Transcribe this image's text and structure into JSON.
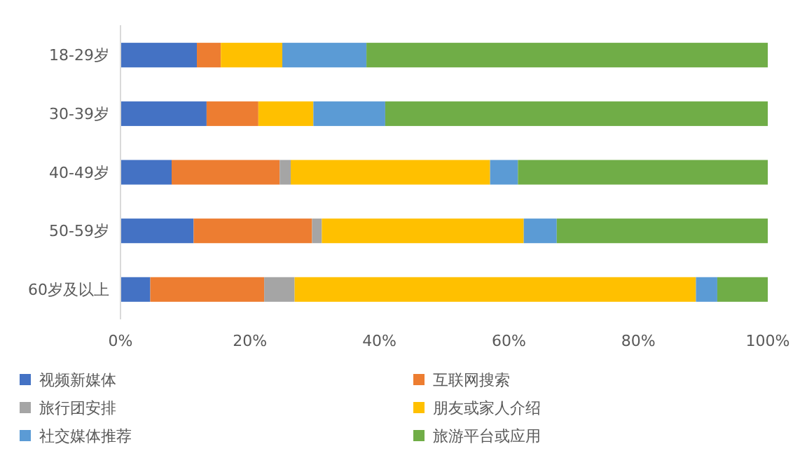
{
  "chart_data": {
    "type": "bar",
    "orientation": "horizontal",
    "stacked": true,
    "categories": [
      "18-29岁",
      "30-39岁",
      "40-49岁",
      "50-59岁",
      "60岁及以上"
    ],
    "series": [
      {
        "name": "视频新媒体",
        "color": "#4472c4",
        "values": [
          11.8,
          13.3,
          7.9,
          11.3,
          4.6
        ]
      },
      {
        "name": "互联网搜索",
        "color": "#ed7d31",
        "values": [
          3.7,
          8.0,
          16.7,
          18.3,
          17.6
        ]
      },
      {
        "name": "旅行团安排",
        "color": "#a5a5a5",
        "values": [
          0,
          0,
          1.7,
          1.5,
          4.7
        ]
      },
      {
        "name": "朋友或家人介绍",
        "color": "#ffc000",
        "values": [
          9.5,
          8.5,
          30.8,
          31.2,
          62.0
        ]
      },
      {
        "name": "社交媒体推荐",
        "color": "#5b9bd5",
        "values": [
          13.0,
          11.1,
          4.3,
          5.1,
          3.3
        ]
      },
      {
        "name": "旅游平台或应用",
        "color": "#70ad47",
        "values": [
          62.0,
          59.1,
          38.6,
          32.6,
          7.8
        ]
      }
    ],
    "xlim": [
      0,
      100
    ],
    "xticks": [
      {
        "value": 0,
        "label": "0%"
      },
      {
        "value": 20,
        "label": "20%"
      },
      {
        "value": 40,
        "label": "40%"
      },
      {
        "value": 60,
        "label": "60%"
      },
      {
        "value": 80,
        "label": "80%"
      },
      {
        "value": 100,
        "label": "100%"
      }
    ],
    "legend": "bottom"
  }
}
